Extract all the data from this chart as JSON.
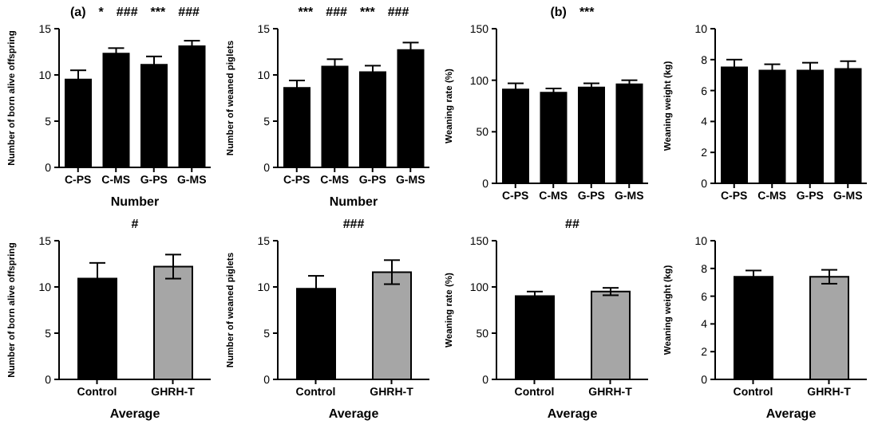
{
  "chart_data": [
    {
      "type": "bar",
      "annotations": [
        "(a)",
        "*",
        "###",
        "***",
        "###"
      ],
      "xlabel": "Number",
      "ylabel": "Number of born alive offspring",
      "categories": [
        "C-PS",
        "C-MS",
        "G-PS",
        "G-MS"
      ],
      "values": [
        9.5,
        12.3,
        11.1,
        13.1
      ],
      "errors": [
        1.0,
        0.6,
        0.9,
        0.6
      ],
      "colors": [
        "#000000",
        "#000000",
        "#000000",
        "#000000"
      ],
      "ylim": [
        0,
        15
      ],
      "yticks": [
        0,
        5,
        10,
        15
      ],
      "grid": false,
      "legend": false
    },
    {
      "type": "bar",
      "annotations": [
        "***",
        "###",
        "***",
        "###"
      ],
      "xlabel": "Number",
      "ylabel": "Number of weaned piglets",
      "categories": [
        "C-PS",
        "C-MS",
        "G-PS",
        "G-MS"
      ],
      "values": [
        8.6,
        10.9,
        10.3,
        12.7
      ],
      "errors": [
        0.8,
        0.8,
        0.7,
        0.8
      ],
      "colors": [
        "#000000",
        "#000000",
        "#000000",
        "#000000"
      ],
      "ylim": [
        0,
        15
      ],
      "yticks": [
        0,
        5,
        10,
        15
      ],
      "grid": false,
      "legend": false
    },
    {
      "type": "bar",
      "annotations": [
        "(b)",
        "***"
      ],
      "ylabel": "Weaning rate (%)",
      "categories": [
        "C-PS",
        "C-MS",
        "G-PS",
        "G-MS"
      ],
      "values": [
        91,
        88,
        93,
        96
      ],
      "errors": [
        6,
        4,
        4,
        4
      ],
      "colors": [
        "#000000",
        "#000000",
        "#000000",
        "#000000"
      ],
      "ylim": [
        0,
        150
      ],
      "yticks": [
        0,
        50,
        100,
        150
      ],
      "grid": false,
      "legend": false
    },
    {
      "type": "bar",
      "ylabel": "Weaning weight (kg)",
      "categories": [
        "C-PS",
        "C-MS",
        "G-PS",
        "G-MS"
      ],
      "values": [
        7.5,
        7.3,
        7.3,
        7.4
      ],
      "errors": [
        0.5,
        0.4,
        0.5,
        0.5
      ],
      "colors": [
        "#000000",
        "#000000",
        "#000000",
        "#000000"
      ],
      "ylim": [
        0,
        10
      ],
      "yticks": [
        0,
        2,
        4,
        6,
        8,
        10
      ],
      "grid": false,
      "legend": false
    },
    {
      "type": "bar",
      "annotations": [
        "#"
      ],
      "xlabel": "Average",
      "ylabel": "Number of born alive offspring",
      "categories": [
        "Control",
        "GHRH-T"
      ],
      "values": [
        10.9,
        12.2
      ],
      "errors": [
        1.7,
        1.3
      ],
      "colors": [
        "#000000",
        "#a6a6a6"
      ],
      "ylim": [
        0,
        15
      ],
      "yticks": [
        0,
        5,
        10,
        15
      ],
      "grid": false,
      "legend": false
    },
    {
      "type": "bar",
      "annotations": [
        "###"
      ],
      "xlabel": "Average",
      "ylabel": "Number of weaned piglets",
      "categories": [
        "Control",
        "GHRH-T"
      ],
      "values": [
        9.8,
        11.6
      ],
      "errors": [
        1.4,
        1.3
      ],
      "colors": [
        "#000000",
        "#a6a6a6"
      ],
      "ylim": [
        0,
        15
      ],
      "yticks": [
        0,
        5,
        10,
        15
      ],
      "grid": false,
      "legend": false
    },
    {
      "type": "bar",
      "annotations": [
        "##"
      ],
      "xlabel": "Average",
      "ylabel": "Weaning rate (%)",
      "categories": [
        "Control",
        "GHRH-T"
      ],
      "values": [
        90,
        95
      ],
      "errors": [
        5,
        4
      ],
      "colors": [
        "#000000",
        "#a6a6a6"
      ],
      "ylim": [
        0,
        150
      ],
      "yticks": [
        0,
        50,
        100,
        150
      ],
      "grid": false,
      "legend": false
    },
    {
      "type": "bar",
      "xlabel": "Average",
      "ylabel": "Weaning weight (kg)",
      "categories": [
        "Control",
        "GHRH-T"
      ],
      "values": [
        7.4,
        7.4
      ],
      "errors": [
        0.45,
        0.5
      ],
      "colors": [
        "#000000",
        "#a6a6a6"
      ],
      "ylim": [
        0,
        10
      ],
      "yticks": [
        0,
        2,
        4,
        6,
        8,
        10
      ],
      "grid": false,
      "legend": false
    }
  ]
}
